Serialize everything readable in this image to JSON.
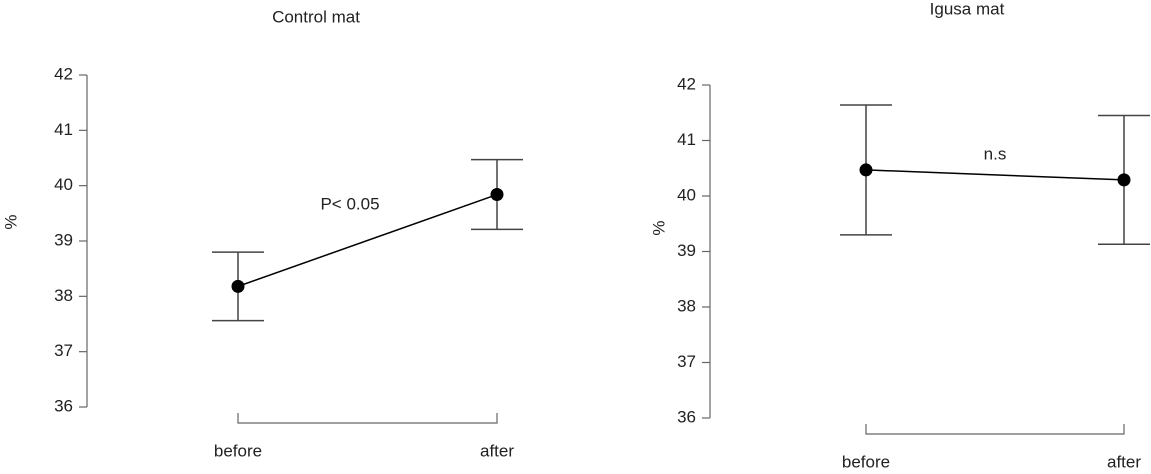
{
  "chart_data": [
    {
      "type": "line",
      "title": "Control mat",
      "y_label": "%",
      "annotation": "P< 0.05",
      "categories": [
        "before",
        "after"
      ],
      "values": [
        38.18,
        39.84
      ],
      "errors": [
        0.62,
        0.63
      ],
      "color": "#000000",
      "ylim": [
        36,
        42
      ],
      "yticks": [
        36,
        37,
        38,
        39,
        40,
        41,
        42
      ]
    },
    {
      "type": "line",
      "title": "Igusa mat",
      "y_label": "%",
      "annotation": "n.s",
      "categories": [
        "before",
        "after"
      ],
      "values": [
        40.47,
        40.29
      ],
      "errors": [
        1.17,
        1.16
      ],
      "color": "#000000",
      "ylim": [
        36,
        42
      ],
      "yticks": [
        36,
        37,
        38,
        39,
        40,
        41,
        42
      ]
    }
  ]
}
